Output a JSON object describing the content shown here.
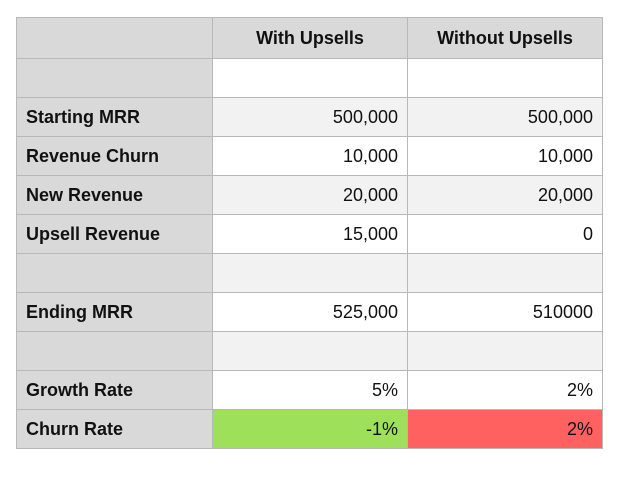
{
  "table": {
    "headers": [
      "",
      "With Upsells",
      "Without Upsells"
    ],
    "rows": [
      {
        "label": "",
        "with": "",
        "without": ""
      },
      {
        "label": "Starting MRR",
        "with": "500,000",
        "without": "500,000"
      },
      {
        "label": "Revenue Churn",
        "with": "10,000",
        "without": "10,000"
      },
      {
        "label": "New Revenue",
        "with": "20,000",
        "without": "20,000"
      },
      {
        "label": "Upsell Revenue",
        "with": "15,000",
        "without": "0"
      },
      {
        "label": "",
        "with": "",
        "without": ""
      },
      {
        "label": "Ending MRR",
        "with": "525,000",
        "without": "510000"
      },
      {
        "label": "",
        "with": "",
        "without": ""
      },
      {
        "label": "Growth Rate",
        "with": "5%",
        "without": "2%"
      },
      {
        "label": "Churn Rate",
        "with": "-1%",
        "without": "2%"
      }
    ]
  },
  "colors": {
    "header_bg": "#d9d9d9",
    "positive_cell": "#9ee05a",
    "negative_cell": "#ff6161"
  }
}
